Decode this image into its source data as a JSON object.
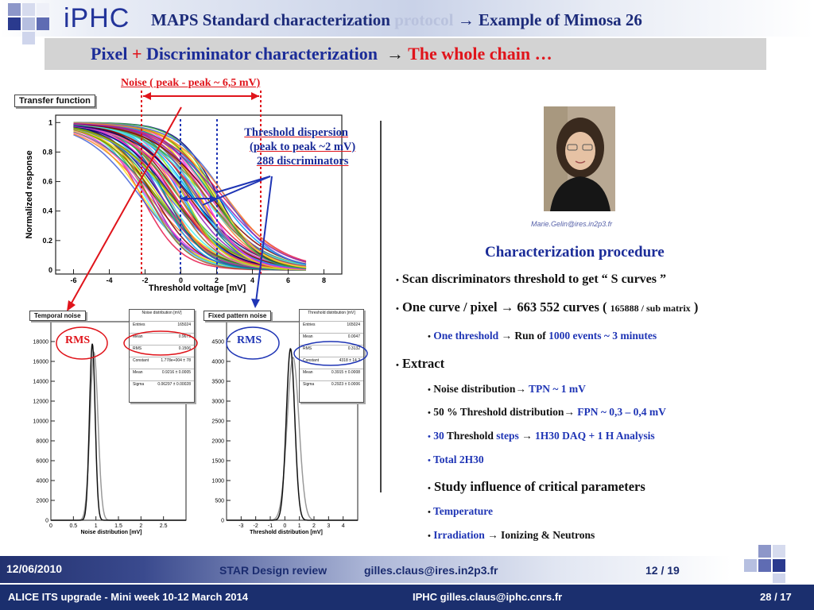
{
  "header": {
    "logo": "iPHC",
    "title_main": "MAPS Standard characterization",
    "title_faded": "protocol",
    "title_arrow": "→",
    "title_tail": "Example of Mimosa 26",
    "subtitle_a": "Pixel",
    "subtitle_plus": "+",
    "subtitle_b": "Discriminator characterization",
    "subtitle_arrow": "→",
    "subtitle_red": "The whole chain …"
  },
  "noise_label": "Noise ( peak - peak ~ 6,5 mV)",
  "transfer": {
    "title": "Transfer function",
    "xlabel": "Threshold voltage [mV]",
    "ylabel": "Normalized response",
    "xticks": [
      "-6",
      "-4",
      "-2",
      "0",
      "2",
      "4",
      "6",
      "8"
    ],
    "yticks": [
      "0",
      "0.2",
      "0.4",
      "0.6",
      "0.8",
      "1"
    ]
  },
  "threshold_note": {
    "line1": "Threshold dispersion",
    "line2": "(peak to peak ~2 mV)",
    "line3": "288 discriminators"
  },
  "temporal": {
    "title": "Temporal noise",
    "rms_label": "RMS",
    "xlabel": "Noise distribution [mV]",
    "xticks": [
      "0",
      "0.5",
      "1",
      "1.5",
      "2",
      "2.5"
    ],
    "yticks": [
      "0",
      "2000",
      "4000",
      "6000",
      "8000",
      "10000",
      "12000",
      "14000",
      "16000",
      "18000"
    ],
    "stats_title": "Noise distribution [mV]",
    "stats": [
      {
        "k": "Entries",
        "v": "165024"
      },
      {
        "k": "Mean",
        "v": "0.9679"
      },
      {
        "k": "RMS",
        "v": "0.1506"
      },
      {
        "k": "Constant",
        "v": "1.778e+004 ± 78"
      },
      {
        "k": "Mean",
        "v": "0.9216 ± 0.0005"
      },
      {
        "k": "Sigma",
        "v": "0.06297 ± 0.00028"
      }
    ]
  },
  "fixed": {
    "title": "Fixed pattern noise",
    "rms_label": "RMS",
    "xlabel": "Threshold distribution [mV]",
    "xticks": [
      "-3",
      "-2",
      "-1",
      "0",
      "1",
      "2",
      "3",
      "4"
    ],
    "yticks": [
      "0",
      "500",
      "1000",
      "1500",
      "2000",
      "2500",
      "3000",
      "3500",
      "4000",
      "4500"
    ],
    "stats_title": "Threshold distribution [mV]",
    "stats": [
      {
        "k": "Entries",
        "v": "165024"
      },
      {
        "k": "Mean",
        "v": "0.0047"
      },
      {
        "k": "RMS",
        "v": "0.3132"
      },
      {
        "k": "Constant",
        "v": "4318 ± 14.2"
      },
      {
        "k": "Mean",
        "v": "0.3915 ± 0.0008"
      },
      {
        "k": "Sigma",
        "v": "0.2923 ± 0.0006"
      }
    ]
  },
  "photo_email": "Marie.Gelin@ires.in2p3.fr",
  "procedure": {
    "title": "Characterization procedure",
    "b1": "Scan discriminators threshold to get “ S curves ”",
    "b2a": "One curve / pixel",
    "b2arrow": "→",
    "b2b": "663 552 curves (",
    "b2c": "165888 / sub matrix",
    "b2d": ")",
    "b3a": "One threshold",
    "b3arrow": "→",
    "b3b": "Run of",
    "b3c": "1000 events ~ 3 minutes",
    "b4": "Extract",
    "b5a": "Noise distribution",
    "b5arrow": "→",
    "b5b": "TPN ~ 1 mV",
    "b6a": "50 % Threshold distribution",
    "b6arrow": "→",
    "b6b": "FPN ~ 0,3 – 0,4 mV",
    "b7a": "30",
    "b7b": "Threshold",
    "b7c": "steps",
    "b7arrow": "→",
    "b7d": "1H30 DAQ + 1 H Analysis",
    "b8": "Total 2H30",
    "b9": "Study influence of critical parameters",
    "b10": "Temperature",
    "b11a": "Irradiation",
    "b11arrow": "→",
    "b11b": "Ionizing & Neutrons"
  },
  "footer": {
    "date": "12/06/2010",
    "event": "STAR Design review",
    "email": "gilles.claus@ires.in2p3.fr",
    "page": "12 / 19"
  },
  "bottom": {
    "left": "ALICE ITS upgrade - Mini week 10-12 March 2014",
    "center": "IPHC  gilles.claus@iphc.cnrs.fr",
    "right": "28 / 17"
  },
  "colors": {
    "navy": "#1b2f6e",
    "title_blue": "#1b2c98",
    "accent_red": "#e0141b",
    "accent_blue": "#1f35b5"
  }
}
